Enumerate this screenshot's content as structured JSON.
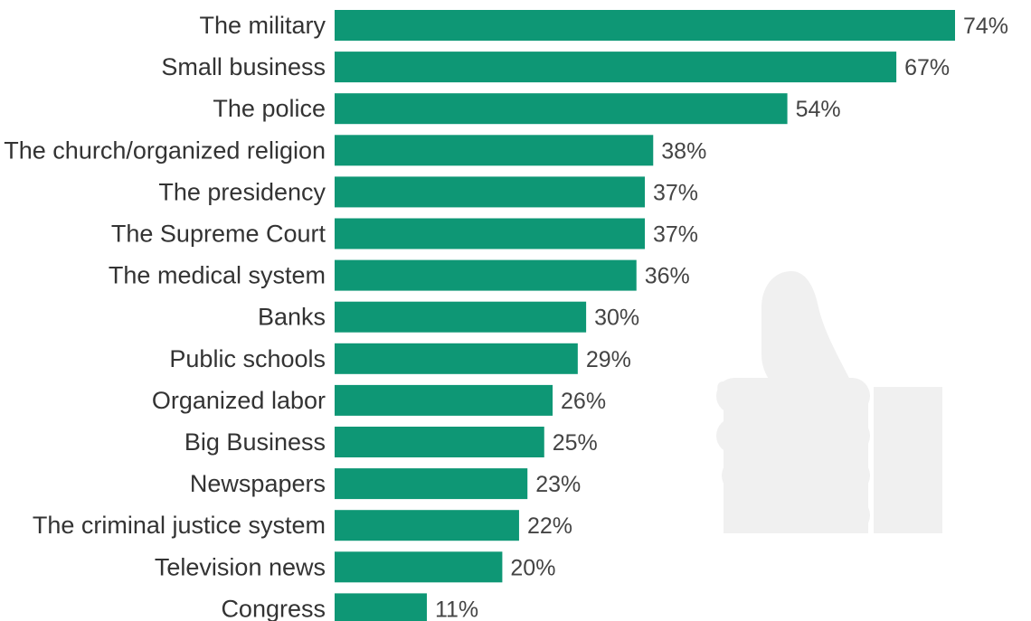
{
  "chart_data": {
    "type": "bar",
    "orientation": "horizontal",
    "categories": [
      "The military",
      "Small business",
      "The police",
      "The church/organized religion",
      "The presidency",
      "The Supreme Court",
      "The medical system",
      "Banks",
      "Public schools",
      "Organized labor",
      "Big Business",
      "Newspapers",
      "The criminal justice system",
      "Television news",
      "Congress"
    ],
    "values": [
      74,
      67,
      54,
      38,
      37,
      37,
      36,
      30,
      29,
      26,
      25,
      23,
      22,
      20,
      11
    ],
    "value_labels": [
      "74%",
      "67%",
      "54%",
      "38%",
      "37%",
      "37%",
      "36%",
      "30%",
      "29%",
      "26%",
      "25%",
      "23%",
      "22%",
      "20%",
      "11%"
    ],
    "xlim": [
      0,
      74
    ],
    "grid": false,
    "legend": "none"
  },
  "colors": {
    "bar": "#0e9775",
    "background_icon": "#f0f0f0",
    "label_text": "#333333",
    "value_text": "#444444"
  },
  "decoration": {
    "icon": "thumbs-up-icon"
  }
}
